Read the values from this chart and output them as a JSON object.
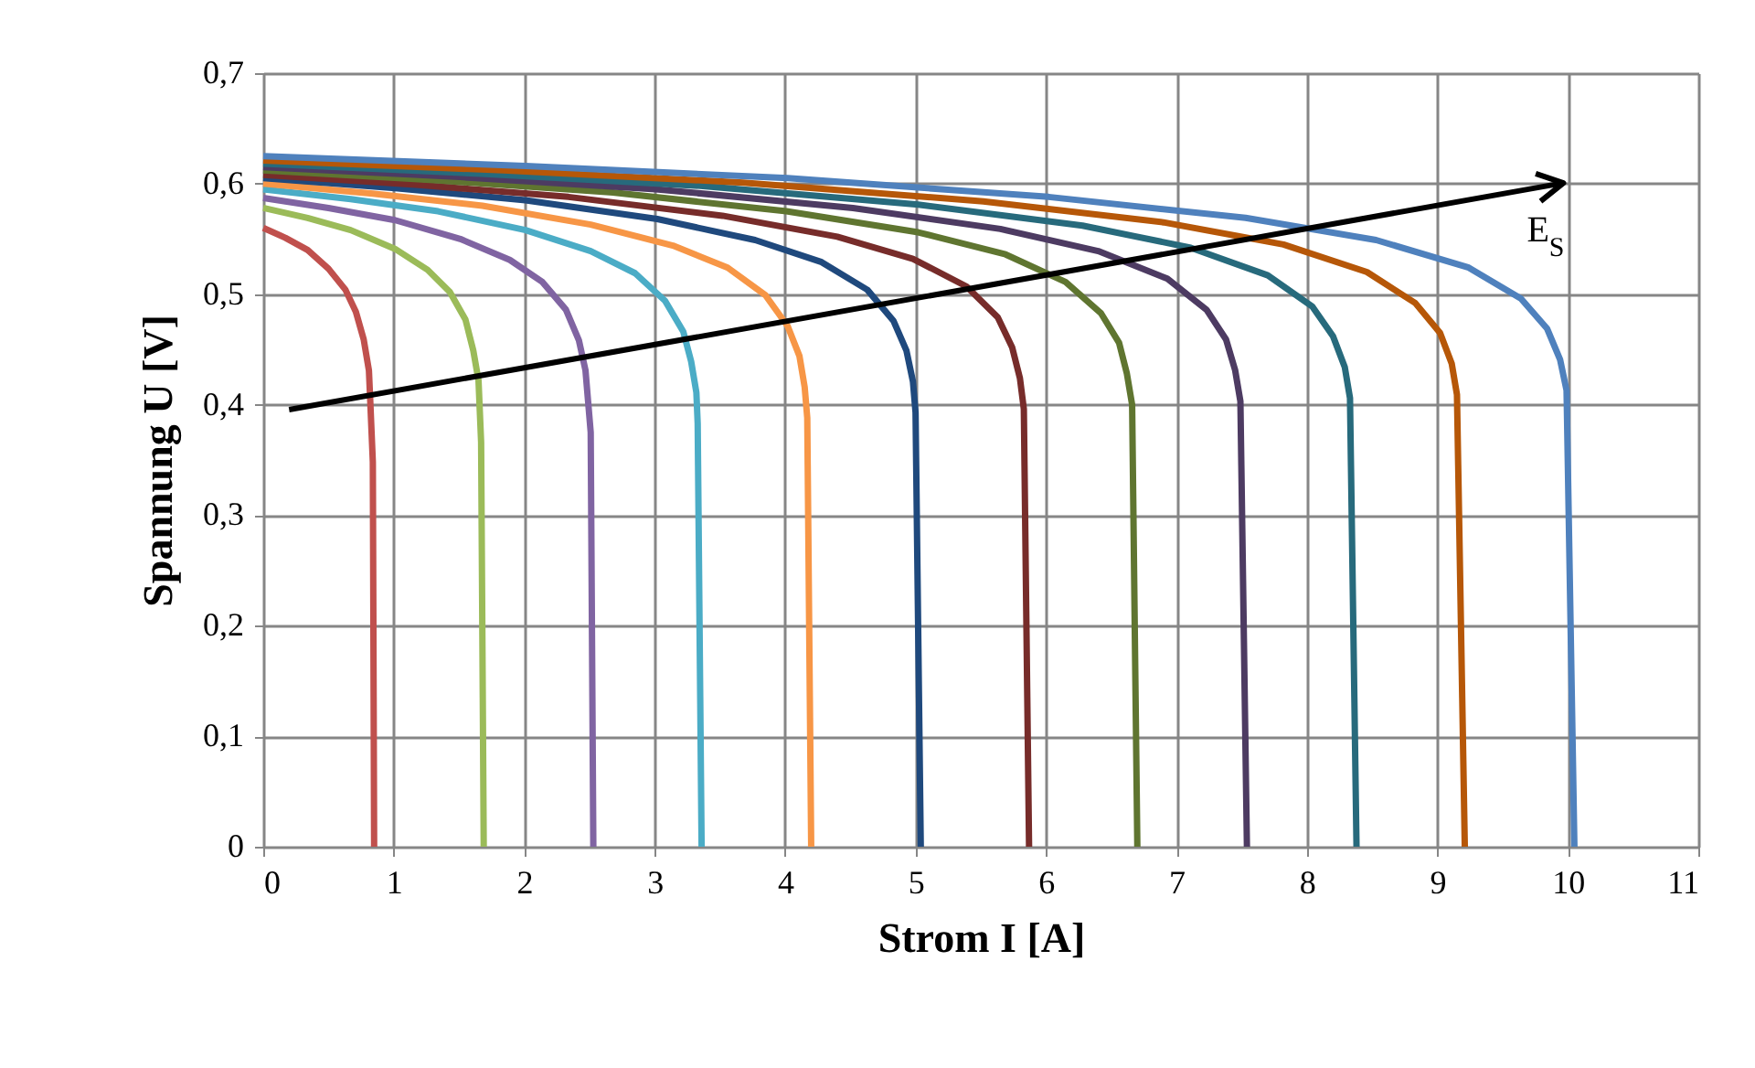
{
  "chart_data": {
    "type": "line",
    "xlabel": "Strom I [A]",
    "ylabel": "Spannung U [V]",
    "xlim": [
      0,
      11
    ],
    "xticks": [
      0,
      1,
      2,
      3,
      4,
      5,
      6,
      7,
      8,
      9,
      10,
      11
    ],
    "ylim": [
      0,
      0.7
    ],
    "yticks": [
      {
        "value": 0,
        "label": "0"
      },
      {
        "value": 0.1,
        "label": "0,1"
      },
      {
        "value": 0.2,
        "label": "0,2"
      },
      {
        "value": 0.3,
        "label": "0,3"
      },
      {
        "value": 0.4,
        "label": "0,4"
      },
      {
        "value": 0.5,
        "label": "0,5"
      },
      {
        "value": 0.6,
        "label": "0,6"
      },
      {
        "value": 0.7,
        "label": "0,7"
      }
    ],
    "grid": true,
    "legend": false,
    "marker": "none",
    "line_style": "solid",
    "annotations": [
      "E$_{S}$"
    ],
    "series": [
      {
        "color": "#c0504d",
        "x": [
          0,
          0.17,
          0.34,
          0.5,
          0.63,
          0.71,
          0.77,
          0.81,
          0.82,
          0.83,
          0.84,
          0.85
        ],
        "values": [
          0.56,
          0.551,
          0.54,
          0.523,
          0.504,
          0.484,
          0.459,
          0.431,
          0.404,
          0.376,
          0.348,
          0
        ]
      },
      {
        "color": "#9bbb59",
        "x": [
          0,
          0.34,
          0.67,
          1.01,
          1.26,
          1.43,
          1.55,
          1.61,
          1.65,
          1.66,
          1.67,
          1.69
        ],
        "values": [
          0.578,
          0.569,
          0.558,
          0.541,
          0.522,
          0.502,
          0.477,
          0.449,
          0.422,
          0.394,
          0.366,
          0
        ]
      },
      {
        "color": "#8064a2",
        "x": [
          0,
          0.5,
          1.01,
          1.51,
          1.89,
          2.14,
          2.32,
          2.42,
          2.47,
          2.49,
          2.51,
          2.53
        ],
        "values": [
          0.587,
          0.578,
          0.567,
          0.55,
          0.531,
          0.511,
          0.486,
          0.458,
          0.431,
          0.403,
          0.375,
          0
        ]
      },
      {
        "color": "#4bacc6",
        "x": [
          0,
          0.67,
          1.34,
          2.01,
          2.51,
          2.85,
          3.08,
          3.22,
          3.28,
          3.32,
          3.33,
          3.36
        ],
        "values": [
          0.595,
          0.586,
          0.575,
          0.558,
          0.539,
          0.519,
          0.494,
          0.466,
          0.439,
          0.411,
          0.383,
          0
        ]
      },
      {
        "color": "#f79646",
        "x": [
          0,
          0.84,
          1.68,
          2.51,
          3.14,
          3.56,
          3.85,
          4.02,
          4.11,
          4.15,
          4.17,
          4.2
        ],
        "values": [
          0.6,
          0.591,
          0.58,
          0.563,
          0.544,
          0.524,
          0.499,
          0.471,
          0.444,
          0.416,
          0.388,
          0
        ]
      },
      {
        "color": "#1f497d",
        "x": [
          0,
          1.01,
          2.01,
          3.02,
          3.77,
          4.28,
          4.63,
          4.83,
          4.93,
          4.98,
          5.0,
          5.04
        ],
        "values": [
          0.605,
          0.596,
          0.585,
          0.568,
          0.549,
          0.529,
          0.504,
          0.476,
          0.449,
          0.421,
          0.393,
          0
        ]
      },
      {
        "color": "#772c2a",
        "x": [
          0,
          1.17,
          2.34,
          3.52,
          4.4,
          4.98,
          5.39,
          5.63,
          5.74,
          5.8,
          5.83,
          5.87
        ],
        "values": [
          0.608,
          0.599,
          0.588,
          0.571,
          0.552,
          0.532,
          0.507,
          0.479,
          0.452,
          0.424,
          0.396,
          0
        ]
      },
      {
        "color": "#5f7530",
        "x": [
          0,
          1.34,
          2.68,
          4.01,
          5.02,
          5.69,
          6.15,
          6.42,
          6.56,
          6.62,
          6.66,
          6.7
        ],
        "values": [
          0.612,
          0.603,
          0.592,
          0.575,
          0.556,
          0.536,
          0.511,
          0.483,
          0.456,
          0.428,
          0.4,
          0
        ]
      },
      {
        "color": "#4d3b62",
        "x": [
          0,
          1.51,
          3.01,
          4.52,
          5.65,
          6.4,
          6.93,
          7.23,
          7.38,
          7.45,
          7.49,
          7.54
        ],
        "values": [
          0.615,
          0.606,
          0.595,
          0.578,
          0.559,
          0.539,
          0.514,
          0.486,
          0.459,
          0.431,
          0.403,
          0
        ]
      },
      {
        "color": "#276a7c",
        "x": [
          0,
          1.67,
          3.35,
          5.02,
          6.28,
          7.11,
          7.7,
          8.04,
          8.2,
          8.29,
          8.33,
          8.38
        ],
        "values": [
          0.618,
          0.609,
          0.598,
          0.581,
          0.562,
          0.542,
          0.517,
          0.489,
          0.462,
          0.434,
          0.406,
          0
        ]
      },
      {
        "color": "#b65708",
        "x": [
          0,
          1.84,
          3.68,
          5.52,
          6.9,
          7.82,
          8.46,
          8.83,
          9.02,
          9.11,
          9.15,
          9.21
        ],
        "values": [
          0.621,
          0.612,
          0.601,
          0.584,
          0.565,
          0.545,
          0.52,
          0.492,
          0.465,
          0.437,
          0.409,
          0
        ]
      },
      {
        "color": "#4f81bd",
        "x": [
          0,
          2.01,
          4.02,
          6.02,
          7.53,
          8.53,
          9.24,
          9.64,
          9.84,
          9.94,
          9.99,
          10.05
        ],
        "values": [
          0.625,
          0.616,
          0.605,
          0.588,
          0.569,
          0.549,
          0.524,
          0.496,
          0.469,
          0.441,
          0.413,
          0
        ]
      }
    ]
  }
}
